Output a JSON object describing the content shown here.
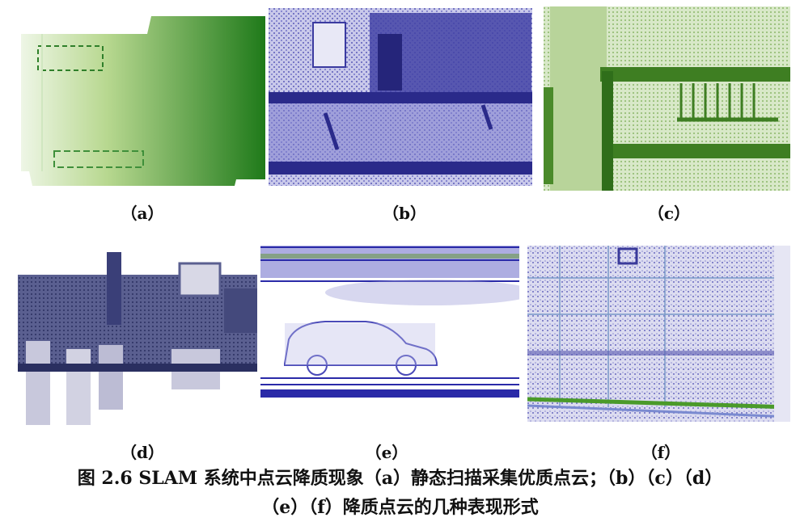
{
  "figure": {
    "panels": [
      {
        "label": "（a）",
        "image": "green-gradient-static-scan-point-cloud",
        "color": "#2f8f1f"
      },
      {
        "label": "（b）",
        "image": "purple-dense-indoor-point-cloud",
        "color": "#3a3aa0"
      },
      {
        "label": "（c）",
        "image": "green-stairway-point-cloud",
        "color": "#4a8a2a"
      },
      {
        "label": "（d）",
        "image": "dark-blue-corridor-point-cloud",
        "color": "#2e3570"
      },
      {
        "label": "（e）",
        "image": "sparse-blue-car-point-cloud",
        "color": "#2a2aa8"
      },
      {
        "label": "（f）",
        "image": "sparse-blue-wall-point-cloud",
        "color": "#4a5ab0"
      }
    ],
    "caption_line1": "图 2.6 SLAM 系统中点云降质现象（a）静态扫描采集优质点云；（b）（c）（d）",
    "caption_line2": "（e）（f）降质点云的几种表现形式"
  }
}
